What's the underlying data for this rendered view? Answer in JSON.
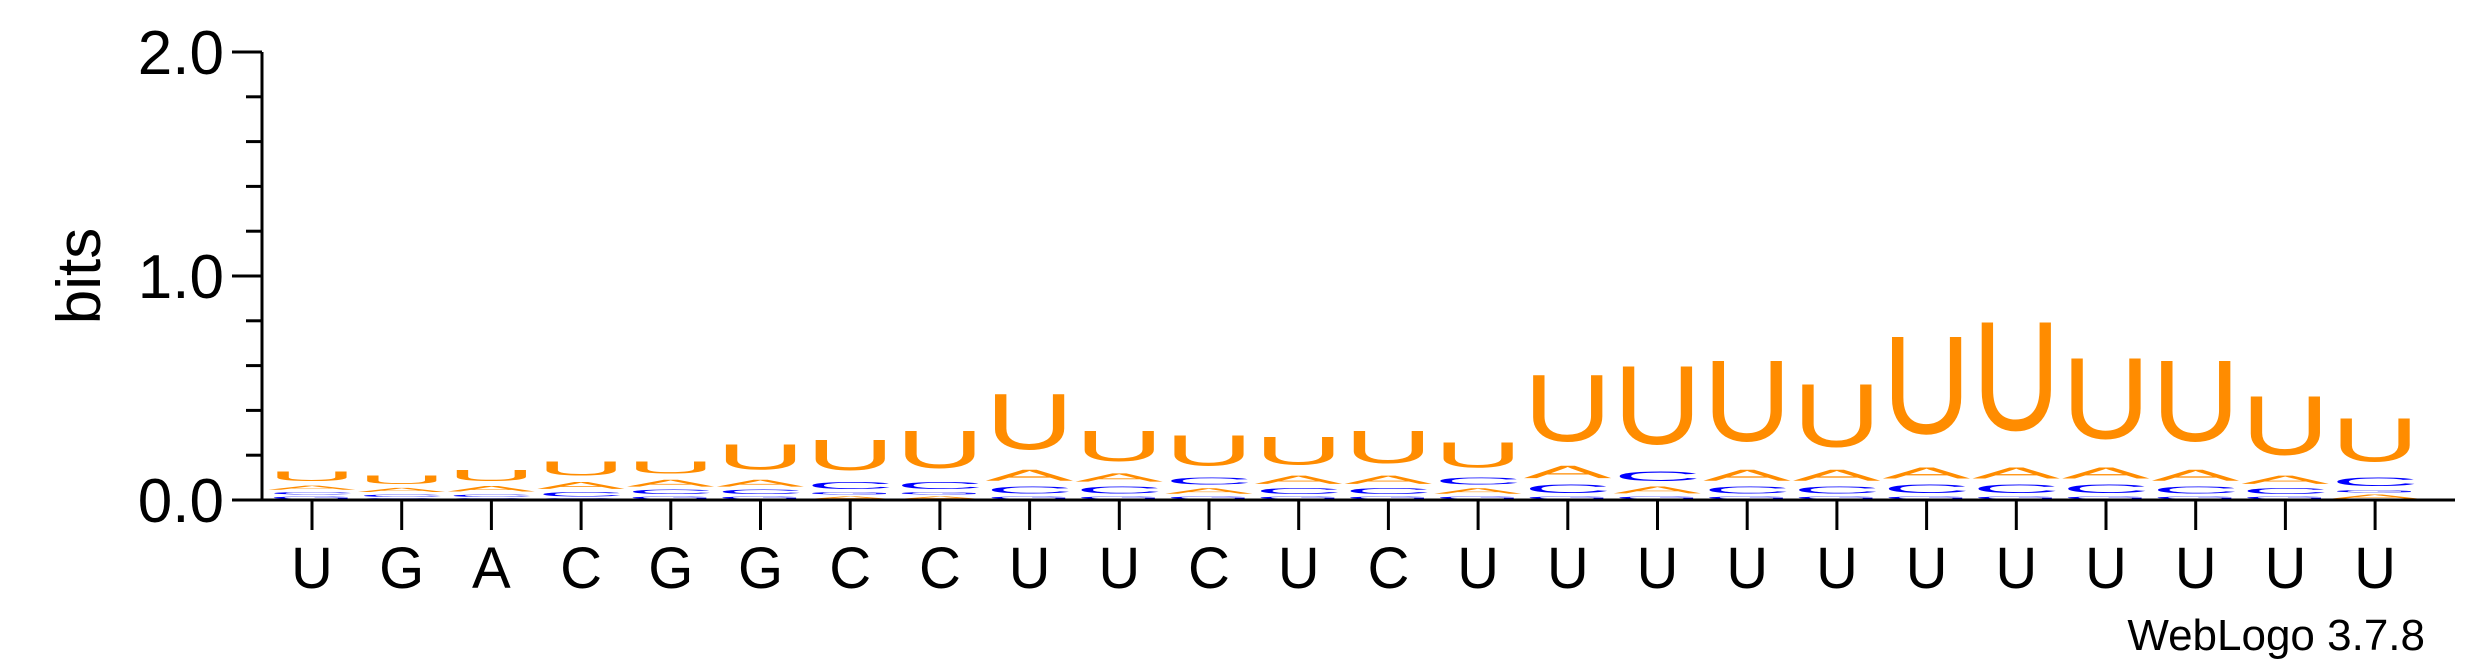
{
  "chart_data": {
    "type": "sequence-logo",
    "ylabel": "bits",
    "ylim": [
      0,
      2.0
    ],
    "yticks": [
      "0.0",
      "1.0",
      "2.0"
    ],
    "credit": "WebLogo 3.7.8",
    "x_labels": [
      "U",
      "G",
      "A",
      "C",
      "G",
      "G",
      "C",
      "C",
      "U",
      "U",
      "C",
      "U",
      "C",
      "U",
      "U",
      "U",
      "U",
      "U",
      "U",
      "U",
      "U",
      "U",
      "U",
      "U"
    ],
    "colors": {
      "U": "#ff8c00",
      "A": "#ff8c00",
      "C": "#0000ff",
      "G": "#0000ff"
    },
    "stacks": [
      [
        [
          "G",
          0.02
        ],
        [
          "C",
          0.02
        ],
        [
          "A",
          0.03
        ],
        [
          "U",
          0.07
        ]
      ],
      [
        [
          "G",
          0.01
        ],
        [
          "C",
          0.02
        ],
        [
          "A",
          0.03
        ],
        [
          "U",
          0.06
        ]
      ],
      [
        [
          "G",
          0.01
        ],
        [
          "C",
          0.02
        ],
        [
          "A",
          0.04
        ],
        [
          "U",
          0.08
        ]
      ],
      [
        [
          "G",
          0.01
        ],
        [
          "C",
          0.03
        ],
        [
          "A",
          0.05
        ],
        [
          "U",
          0.1
        ]
      ],
      [
        [
          "G",
          0.02
        ],
        [
          "C",
          0.03
        ],
        [
          "A",
          0.05
        ],
        [
          "U",
          0.09
        ]
      ],
      [
        [
          "G",
          0.02
        ],
        [
          "C",
          0.03
        ],
        [
          "A",
          0.05
        ],
        [
          "U",
          0.18
        ]
      ],
      [
        [
          "A",
          0.02
        ],
        [
          "G",
          0.02
        ],
        [
          "C",
          0.05
        ],
        [
          "U",
          0.22
        ]
      ],
      [
        [
          "A",
          0.02
        ],
        [
          "G",
          0.02
        ],
        [
          "C",
          0.05
        ],
        [
          "U",
          0.27
        ]
      ],
      [
        [
          "G",
          0.02
        ],
        [
          "C",
          0.05
        ],
        [
          "A",
          0.08
        ],
        [
          "U",
          0.4
        ]
      ],
      [
        [
          "G",
          0.02
        ],
        [
          "C",
          0.05
        ],
        [
          "A",
          0.06
        ],
        [
          "U",
          0.22
        ]
      ],
      [
        [
          "G",
          0.02
        ],
        [
          "A",
          0.04
        ],
        [
          "C",
          0.05
        ],
        [
          "U",
          0.22
        ]
      ],
      [
        [
          "G",
          0.02
        ],
        [
          "C",
          0.04
        ],
        [
          "A",
          0.06
        ],
        [
          "U",
          0.2
        ]
      ],
      [
        [
          "G",
          0.02
        ],
        [
          "C",
          0.04
        ],
        [
          "A",
          0.06
        ],
        [
          "U",
          0.23
        ]
      ],
      [
        [
          "G",
          0.02
        ],
        [
          "A",
          0.04
        ],
        [
          "C",
          0.05
        ],
        [
          "U",
          0.18
        ]
      ],
      [
        [
          "G",
          0.02
        ],
        [
          "C",
          0.06
        ],
        [
          "A",
          0.09
        ],
        [
          "U",
          0.48
        ]
      ],
      [
        [
          "G",
          0.02
        ],
        [
          "A",
          0.05
        ],
        [
          "C",
          0.07
        ],
        [
          "U",
          0.56
        ]
      ],
      [
        [
          "G",
          0.02
        ],
        [
          "C",
          0.05
        ],
        [
          "A",
          0.08
        ],
        [
          "U",
          0.58
        ]
      ],
      [
        [
          "G",
          0.02
        ],
        [
          "C",
          0.05
        ],
        [
          "A",
          0.08
        ],
        [
          "U",
          0.45
        ]
      ],
      [
        [
          "G",
          0.02
        ],
        [
          "C",
          0.06
        ],
        [
          "A",
          0.08
        ],
        [
          "U",
          0.7
        ]
      ],
      [
        [
          "G",
          0.02
        ],
        [
          "C",
          0.06
        ],
        [
          "A",
          0.08
        ],
        [
          "U",
          0.78
        ]
      ],
      [
        [
          "G",
          0.02
        ],
        [
          "C",
          0.06
        ],
        [
          "A",
          0.08
        ],
        [
          "U",
          0.58
        ]
      ],
      [
        [
          "G",
          0.02
        ],
        [
          "C",
          0.05
        ],
        [
          "A",
          0.08
        ],
        [
          "U",
          0.58
        ]
      ],
      [
        [
          "G",
          0.02
        ],
        [
          "C",
          0.04
        ],
        [
          "A",
          0.06
        ],
        [
          "U",
          0.42
        ]
      ],
      [
        [
          "A",
          0.03
        ],
        [
          "G",
          0.02
        ],
        [
          "C",
          0.06
        ],
        [
          "U",
          0.31
        ]
      ]
    ]
  }
}
